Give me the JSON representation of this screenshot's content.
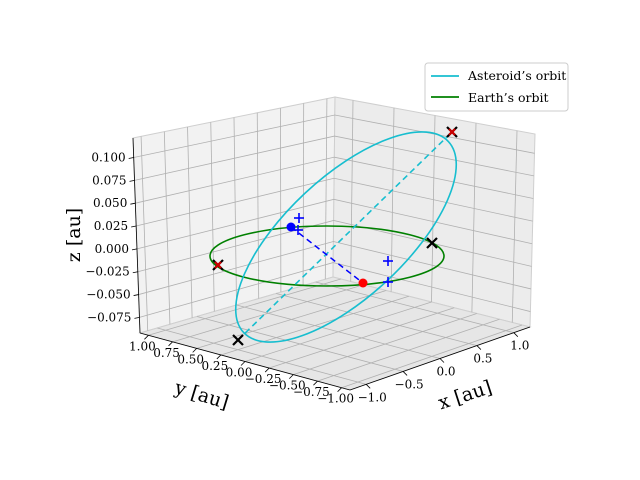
{
  "chart_data": {
    "type": "3d-line",
    "title": "",
    "xlabel": "x [au]",
    "ylabel": "y [au]",
    "zlabel": "z [au]",
    "x_ticks": [
      "−1.0",
      "−0.5",
      "0.0",
      "0.5",
      "1.0"
    ],
    "y_ticks": [
      "1.00",
      "0.75",
      "0.50",
      "0.25",
      "0.00",
      "−0.25",
      "−0.50",
      "−0.75",
      "−1.00"
    ],
    "z_ticks": [
      "−0.075",
      "−0.050",
      "−0.025",
      "0.000",
      "0.025",
      "0.050",
      "0.075",
      "0.100"
    ],
    "zlim": [
      -0.09,
      0.12
    ],
    "grid": true,
    "legend_position": "upper-right",
    "series": [
      {
        "name": "Asteroid’s orbit",
        "color": "#17becf",
        "style": "solid"
      },
      {
        "name": "Earth’s orbit",
        "color": "#008000",
        "style": "solid"
      }
    ],
    "markers": [
      {
        "kind": "asteroid position",
        "color": "#0000ff",
        "shape": "dot"
      },
      {
        "kind": "earth position",
        "color": "#ff0000",
        "shape": "dot"
      },
      {
        "kind": "apsides",
        "color": "#000000",
        "shape": "x"
      },
      {
        "kind": "nodes",
        "color": "#0000ff",
        "shape": "+"
      }
    ],
    "colors": {
      "axis_pane": "#f2f2f2",
      "grid": "#b0b0b0",
      "apse_line": "#17becf",
      "node_line": "#0000ff"
    }
  }
}
